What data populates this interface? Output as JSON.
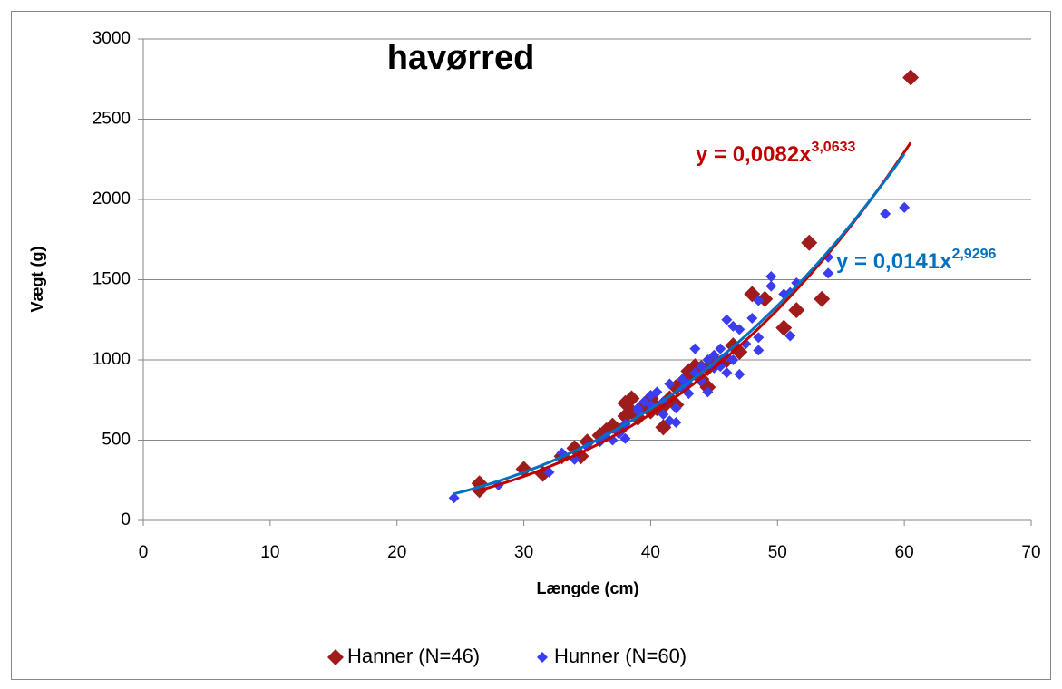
{
  "chart_data": {
    "type": "scatter",
    "title": "havørred",
    "x_label": "Længde (cm)",
    "y_label": "Vægt (g)",
    "xlim": [
      0,
      70
    ],
    "xticks": [
      0,
      10,
      20,
      30,
      40,
      50,
      60,
      70
    ],
    "ylim": [
      0,
      3000
    ],
    "yticks": [
      0,
      500,
      1000,
      1500,
      2000,
      2500,
      3000
    ],
    "grid": true,
    "legend": "bottom",
    "series": [
      {
        "name": "Hanner (N=46)",
        "color": "#a01c1c",
        "x": [
          26.5,
          26.5,
          30,
          31.5,
          33,
          34,
          34.5,
          36,
          37,
          38,
          38.5,
          38.5,
          39,
          40,
          40.5,
          41,
          41.5,
          42,
          43,
          43.5,
          44,
          44.5,
          44,
          45,
          45.5,
          46.5,
          48,
          49,
          50.5,
          51.5,
          52.5,
          53.5,
          60.5,
          42.5,
          37.5,
          39.5,
          40,
          43,
          44.5,
          41,
          35,
          46,
          47,
          38,
          42,
          36.5
        ],
        "values": [
          230,
          190,
          320,
          290,
          400,
          450,
          400,
          530,
          590,
          730,
          760,
          680,
          640,
          760,
          700,
          580,
          760,
          830,
          900,
          960,
          950,
          830,
          880,
          1000,
          980,
          1090,
          1410,
          1380,
          1200,
          1310,
          1730,
          1380,
          2760,
          850,
          560,
          720,
          680,
          930,
          950,
          710,
          490,
          1000,
          1050,
          650,
          720,
          560
        ],
        "trendline": {
          "color": "#c00000",
          "a": 0.0082,
          "b": 3.0633,
          "equation": "y = 0,0082x",
          "exponent": "3,0633"
        }
      },
      {
        "name": "Hunner (N=60)",
        "color": "#3c3cf0",
        "x": [
          24.5,
          28,
          32,
          33,
          34,
          36,
          37,
          38,
          38,
          39,
          39.5,
          40,
          40.5,
          41,
          41.5,
          41.5,
          42,
          42,
          42.5,
          43,
          43.5,
          43.5,
          44,
          44.5,
          45,
          45.5,
          46,
          46,
          46.5,
          46.5,
          47,
          47,
          48,
          48.5,
          48.5,
          48.5,
          49.5,
          49.5,
          50.5,
          51,
          51.5,
          51,
          54,
          54,
          58.5,
          60,
          40,
          41,
          42.5,
          43,
          44,
          45,
          46,
          47.5,
          39,
          37.5,
          35,
          36.5,
          44.5,
          45.5
        ],
        "values": [
          140,
          220,
          300,
          420,
          380,
          490,
          500,
          510,
          600,
          700,
          740,
          720,
          800,
          660,
          850,
          620,
          610,
          700,
          820,
          790,
          1070,
          920,
          870,
          800,
          1030,
          960,
          1250,
          920,
          1210,
          1000,
          910,
          1190,
          1260,
          1370,
          1060,
          1140,
          1520,
          1460,
          1410,
          1150,
          1480,
          1420,
          1540,
          1640,
          1910,
          1950,
          780,
          740,
          880,
          850,
          960,
          950,
          1020,
          1100,
          680,
          540,
          460,
          520,
          1000,
          1070
        ],
        "trendline": {
          "color": "#0070c0",
          "a": 0.0141,
          "b": 2.9296,
          "equation": "y = 0,0141x",
          "exponent": "2,9296"
        }
      }
    ]
  }
}
